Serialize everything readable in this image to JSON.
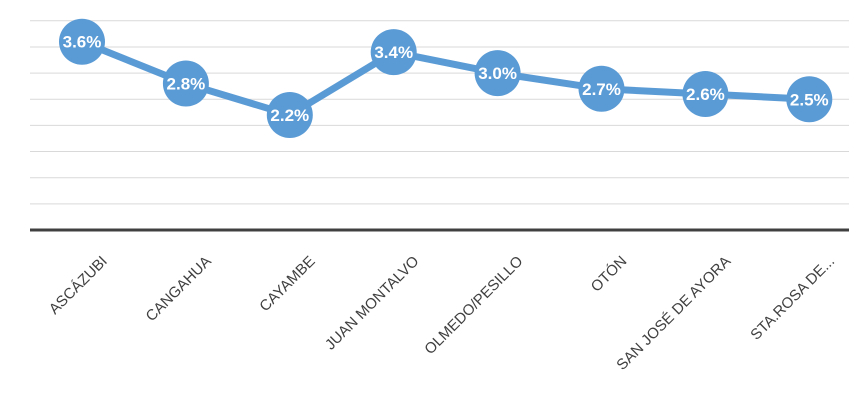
{
  "chart_data": {
    "type": "line",
    "categories": [
      "ASCÁZUBI",
      "CANGAHUA",
      "CAYAMBE",
      "JUAN MONTALVO",
      "OLMEDO/PESILLO",
      "OTÓN",
      "SAN JOSÉ DE AYORA",
      "STA.ROSA DE..."
    ],
    "values": [
      3.6,
      2.8,
      2.2,
      3.4,
      3.0,
      2.7,
      2.6,
      2.5
    ],
    "value_labels": [
      "3.6%",
      "2.8%",
      "2.2%",
      "3.4%",
      "3.0%",
      "2.7%",
      "2.6%",
      "2.5%"
    ],
    "ylim": [
      0,
      4
    ],
    "grid": true,
    "series_color": "#5b9bd5",
    "label_color": "#ffffff"
  }
}
